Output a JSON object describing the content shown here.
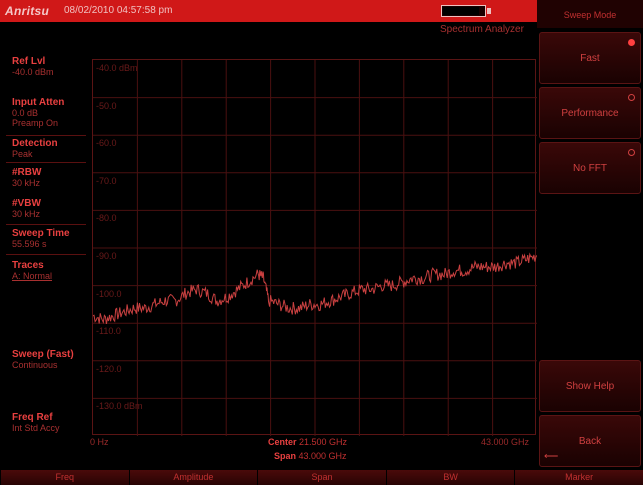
{
  "status": {
    "brand": "Anritsu",
    "datetime": "08/02/2010 04:57:58 pm",
    "mode": "Spectrum Analyzer"
  },
  "left_panel": {
    "ref_lvl": {
      "label": "Ref Lvl",
      "value": "-40.0 dBm"
    },
    "input_atten": {
      "label": "Input Atten",
      "value1": "0.0 dB",
      "value2": "Preamp On"
    },
    "detection": {
      "label": "Detection",
      "value": "Peak"
    },
    "rbw": {
      "label": "#RBW",
      "value": "30 kHz"
    },
    "vbw": {
      "label": "#VBW",
      "value": "30 kHz"
    },
    "sweep_time": {
      "label": "Sweep Time",
      "value": "55.596 s"
    },
    "traces": {
      "label": "Traces",
      "value": "A: Normal"
    },
    "sweep": {
      "label": "Sweep (Fast)",
      "value": "Continuous"
    },
    "freq_ref": {
      "label": "Freq Ref",
      "value": "Int Std Accy"
    }
  },
  "graph": {
    "y_labels": [
      "-40.0 dBm",
      "-50.0",
      "-60.0",
      "-70.0",
      "-80.0",
      "-90.0",
      "-100.0",
      "-110.0",
      "-120.0",
      "-130.0 dBm"
    ],
    "x_start": "0 Hz",
    "x_stop": "43.000 GHz",
    "center_label": "Center",
    "center_value": "21.500 GHz",
    "span_label": "Span",
    "span_value": "43.000 GHz"
  },
  "chart_data": {
    "type": "line",
    "ylim": [
      -140,
      -40
    ],
    "xlim": [
      0,
      43
    ],
    "series": [
      {
        "x": [
          0,
          1,
          2,
          3,
          4,
          5,
          6,
          7,
          8,
          9,
          10,
          11,
          12,
          13,
          14,
          15,
          16,
          16.5,
          17,
          18,
          19,
          20,
          21,
          22,
          23,
          24,
          25,
          26,
          27,
          28,
          29,
          30,
          31,
          32,
          33,
          34,
          35,
          36,
          37,
          38,
          39,
          40,
          41,
          42,
          43
        ],
        "values": [
          -108,
          -109,
          -108,
          -107,
          -106,
          -106,
          -105,
          -104,
          -104,
          -102,
          -101,
          -102,
          -104,
          -103,
          -101,
          -99,
          -97,
          -98,
          -104,
          -105,
          -106,
          -106,
          -105,
          -105,
          -104,
          -103,
          -102,
          -101,
          -101,
          -100,
          -100,
          -99,
          -98,
          -98,
          -97,
          -97,
          -96,
          -96,
          -95,
          -95,
          -95,
          -94,
          -94,
          -93,
          -92
        ]
      }
    ]
  },
  "softkeys": {
    "title": "Sweep Mode",
    "fast": "Fast",
    "performance": "Performance",
    "no_fft": "No FFT",
    "show_help": "Show Help",
    "back": "Back"
  },
  "menu": [
    "Freq",
    "Amplitude",
    "Span",
    "BW",
    "Marker"
  ],
  "colors": {
    "accent": "#d01818",
    "trace": "#c84040",
    "grid": "#4a1010"
  }
}
